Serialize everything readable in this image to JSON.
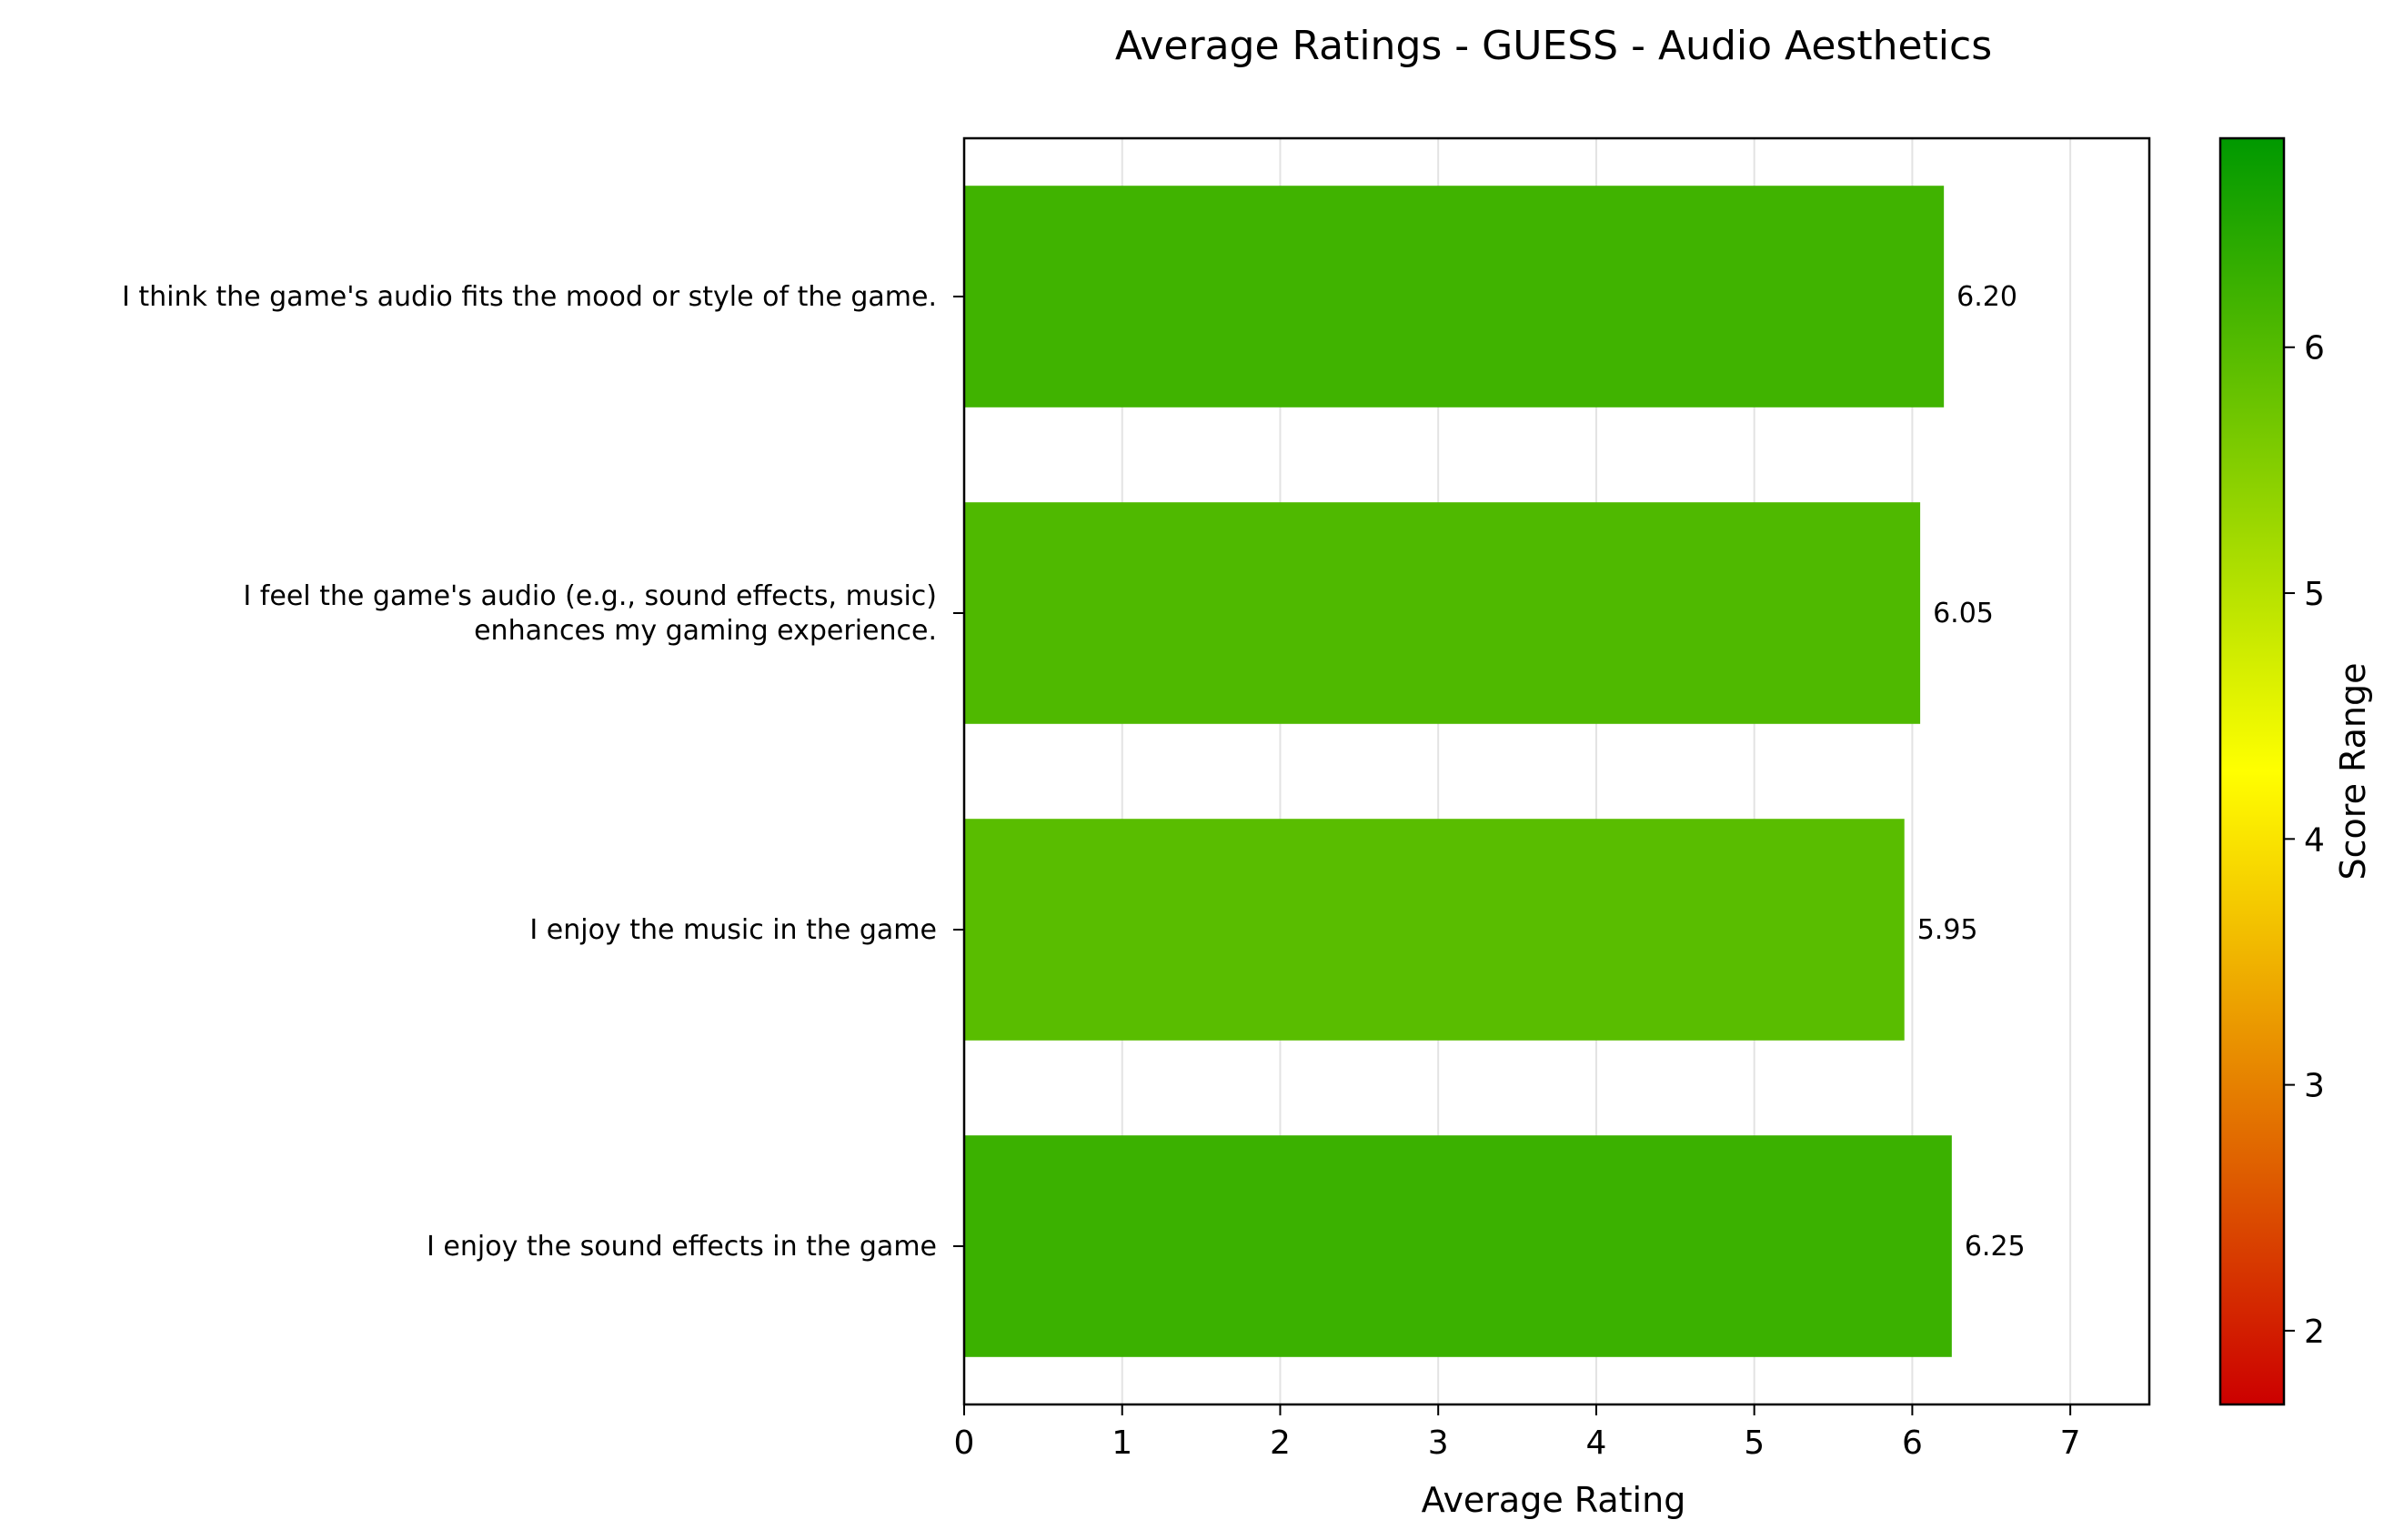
{
  "chart_data": {
    "type": "bar",
    "orientation": "horizontal",
    "title": "Average Ratings - GUESS - Audio Aesthetics",
    "xlabel": "Average Rating",
    "ylabel": "",
    "xlim": [
      0,
      7.5
    ],
    "xticks": [
      "0",
      "1",
      "2",
      "3",
      "4",
      "5",
      "6",
      "7"
    ],
    "grid": "vertical",
    "categories": [
      [
        "I think the game's audio fits the mood or style of the game."
      ],
      [
        "I feel the game's audio (e.g., sound effects, music)",
        "enhances my gaming experience."
      ],
      [
        "I enjoy the music in the game"
      ],
      [
        "I enjoy the sound effects in the game"
      ]
    ],
    "values": [
      6.2,
      6.05,
      5.95,
      6.25
    ],
    "data_labels": [
      "6.20",
      "6.05",
      "5.95",
      "6.25"
    ],
    "colorbar": {
      "label": "Score Range",
      "range": [
        1.7,
        6.85
      ],
      "ticks": [
        "2",
        "3",
        "4",
        "5",
        "6"
      ],
      "colors": [
        "#cc0000",
        "#ffff00",
        "#009900"
      ]
    }
  }
}
